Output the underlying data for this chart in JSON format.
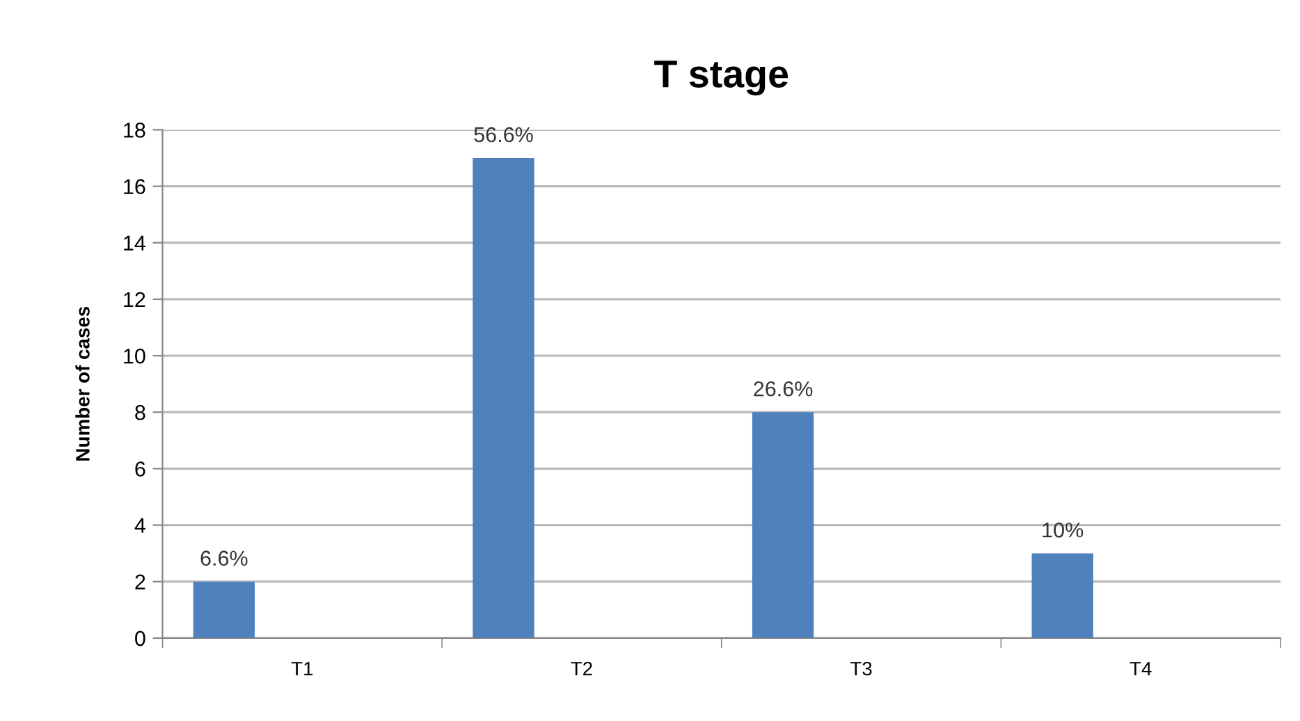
{
  "chart_data": {
    "type": "bar",
    "title": "T stage",
    "ylabel": "Number of cases",
    "categories": [
      "T1",
      "T2",
      "T3",
      "T4"
    ],
    "values": [
      2,
      17,
      8,
      3
    ],
    "annotations": [
      "6.6%",
      "56.6%",
      "26.6%",
      "10%"
    ],
    "color": "#4f81bd",
    "ylim": [
      0,
      18
    ],
    "yticks": [
      0,
      2,
      4,
      6,
      8,
      10,
      12,
      14,
      16,
      18
    ],
    "grid": "y",
    "legend": false
  }
}
